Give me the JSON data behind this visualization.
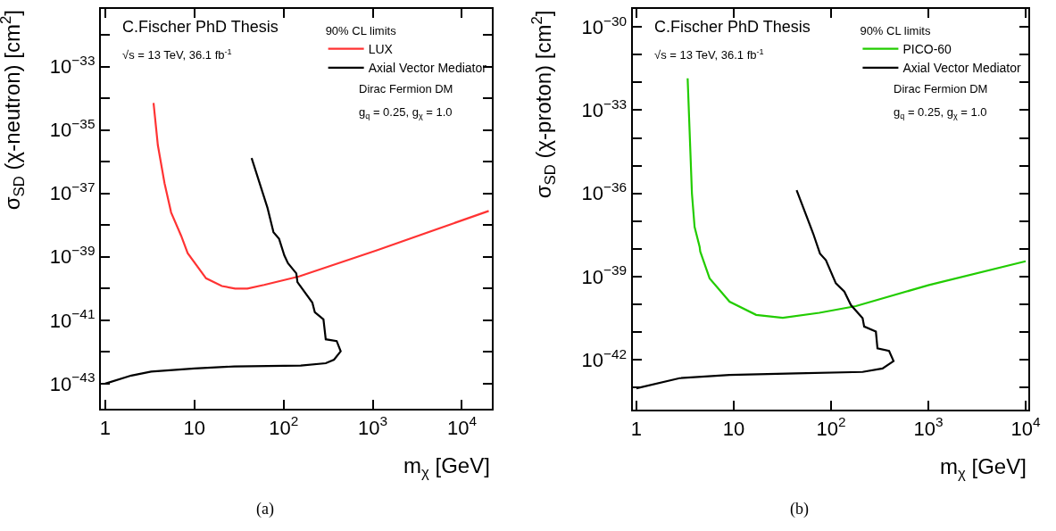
{
  "chart_data": [
    {
      "type": "line",
      "xlabel": "m$_{χ}$ [GeV]",
      "ylabel": "σ$_{SD}$ (χ-neutron) [cm$^{2}$]",
      "legend_title": "90% CL limits",
      "legend": "top right",
      "log": "xy",
      "line_style": "solid",
      "annotations": [
        "C.Fischer PhD Thesis",
        "√s = 13 TeV, 36.1 fb$^{-1}$",
        "Dirac Fermion DM",
        "g$_{q}$ = 0.25, g$_{χ}$ = 1.0",
        "(a)"
      ],
      "xlim": [
        0.89,
        21700
      ],
      "xticks": [
        1,
        10,
        {
          "value": 100,
          "label": "10$^{2}$"
        },
        {
          "value": 1000,
          "label": "10$^{3}$"
        },
        {
          "value": 10000,
          "label": "10$^{4}$"
        }
      ],
      "ylim": [
        1.6e-44,
        6.8e-32
      ],
      "yticks": [
        {
          "value": 1e-43,
          "label": "10$^{−43}$"
        },
        {
          "value": 1e-42,
          "label": null
        },
        {
          "value": 1e-41,
          "label": "10$^{−41}$"
        },
        {
          "value": 1e-40,
          "label": null
        },
        {
          "value": 1e-39,
          "label": "10$^{−39}$"
        },
        {
          "value": 1e-38,
          "label": null
        },
        {
          "value": 1e-37,
          "label": "10$^{−37}$"
        },
        {
          "value": 1e-36,
          "label": null
        },
        {
          "value": 1e-35,
          "label": "10$^{−35}$"
        },
        {
          "value": 1e-34,
          "label": null
        },
        {
          "value": 1e-33,
          "label": "10$^{−33}$"
        },
        {
          "value": 1e-32,
          "label": null
        }
      ],
      "series": [
        {
          "name": "LUX",
          "color": "#ff3333",
          "x": [
            3.48,
            3.89,
            4.62,
            5.48,
            7.1,
            8.4,
            13.5,
            20.3,
            28.6,
            39.3,
            60.4,
            149,
            1110,
            20000
          ],
          "values": [
            7.1e-35,
            3.3e-36,
            2.1e-37,
            2.5e-38,
            4.6e-39,
            1.3e-39,
            2.1e-40,
            1.2e-40,
            1e-40,
            1e-40,
            1.3e-40,
            2.4e-40,
            1.6e-39,
            2.8e-38
          ]
        },
        {
          "name": "Axial Vector Mediator",
          "color": "#000000",
          "x": [
            43.8,
            66,
            77,
            89,
            102,
            112,
            139,
            143,
            210,
            224,
            280,
            297,
            394,
            437,
            368,
            297,
            156,
            28,
            10,
            3.27,
            1.96,
            1
          ],
          "values": [
            1.3e-36,
            3.5e-38,
            6e-39,
            3.7e-39,
            1.1e-39,
            6.3e-40,
            3e-40,
            1.6e-40,
            3.6e-41,
            1.8e-41,
            1.07e-41,
            2.5e-42,
            2.2e-42,
            1.05e-42,
            5.7e-43,
            4.4e-43,
            3.7e-43,
            3.5e-43,
            3e-43,
            2.4e-43,
            1.8e-43,
            1e-43
          ]
        }
      ]
    },
    {
      "type": "line",
      "xlabel": "m$_{χ}$ [GeV]",
      "ylabel": "σ$_{SD}$ (χ-proton) [cm$^{2}$]",
      "legend_title": "90% CL limits",
      "legend": "top right",
      "log": "xy",
      "line_style": "solid",
      "annotations": [
        "C.Fischer PhD Thesis",
        "√s = 13 TeV, 36.1 fb$^{-1}$",
        "Dirac Fermion DM",
        "g$_{q}$ = 0.25, g$_{χ}$ = 1.0",
        "(b)"
      ],
      "xlim": [
        0.91,
        10700
      ],
      "xticks": [
        1,
        10,
        {
          "value": 100,
          "label": "10$^{2}$"
        },
        {
          "value": 1000,
          "label": "10$^{3}$"
        },
        {
          "value": 10000,
          "label": "10$^{4}$"
        }
      ],
      "ylim": [
        1.6e-44,
        4.6e-30
      ],
      "yticks": [
        {
          "value": 1e-43,
          "label": null
        },
        {
          "value": 1e-42,
          "label": "10$^{−42}$"
        },
        {
          "value": 1e-41,
          "label": null
        },
        {
          "value": 1e-40,
          "label": null
        },
        {
          "value": 1e-39,
          "label": "10$^{−39}$"
        },
        {
          "value": 1e-38,
          "label": null
        },
        {
          "value": 1e-37,
          "label": null
        },
        {
          "value": 1e-36,
          "label": "10$^{−36}$"
        },
        {
          "value": 1e-35,
          "label": null
        },
        {
          "value": 1e-34,
          "label": null
        },
        {
          "value": 1e-33,
          "label": "10$^{−33}$"
        },
        {
          "value": 1e-32,
          "label": null
        },
        {
          "value": 1e-31,
          "label": null
        },
        {
          "value": 1e-30,
          "label": "10$^{−30}$"
        }
      ],
      "series": [
        {
          "name": "PICO-60",
          "color": "#22cc00",
          "x": [
            3.36,
            3.72,
            3.96,
            4.46,
            4.53,
            5.65,
            9.06,
            17,
            31.9,
            75.8,
            180,
            1016,
            10000
          ],
          "values": [
            1.4e-32,
            9.8e-37,
            6.2e-38,
            1.2e-38,
            8e-39,
            8.7e-40,
            1.26e-40,
            4.2e-41,
            3.3e-41,
            5e-41,
            8.7e-41,
            5e-40,
            3.6e-39
          ]
        },
        {
          "name": "Axial Vector Mediator",
          "color": "#000000",
          "x": [
            44.3,
            65.7,
            77,
            88.6,
            112,
            137,
            160,
            211,
            219,
            289,
            300,
            395,
            439,
            338,
            211,
            43.7,
            9.06,
            2.78,
            1
          ],
          "values": [
            1.3e-36,
            3.5e-38,
            6.8e-39,
            3.9e-39,
            5.8e-40,
            2.9e-40,
            9.5e-41,
            3.2e-41,
            1.6e-41,
            1.05e-41,
            2.6e-42,
            2.1e-42,
            9.1e-43,
            4.9e-43,
            3.7e-43,
            3.3e-43,
            2.9e-43,
            2.2e-43,
            9.5e-44
          ]
        }
      ]
    }
  ]
}
